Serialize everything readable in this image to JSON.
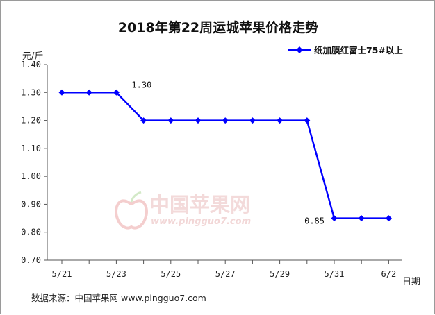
{
  "chart_data": {
    "type": "line",
    "title": "2018年第22周运城苹果价格走势",
    "ylabel": "元/斤",
    "xlabel": "日期",
    "ylim": [
      0.7,
      1.4
    ],
    "yticks": [
      "1.40",
      "1.30",
      "1.20",
      "1.10",
      "1.00",
      "0.90",
      "0.80",
      "0.70"
    ],
    "categories": [
      "5/21",
      "5/22",
      "5/23",
      "5/24",
      "5/25",
      "5/26",
      "5/27",
      "5/28",
      "5/29",
      "5/30",
      "5/31",
      "6/1",
      "6/2"
    ],
    "xtick_labels": [
      "5/21",
      "5/23",
      "5/25",
      "5/27",
      "5/29",
      "5/31",
      "6/2"
    ],
    "series": [
      {
        "name": "纸加膜红富士75#以上",
        "color": "#0000ff",
        "values": [
          1.3,
          1.3,
          1.3,
          1.2,
          1.2,
          1.2,
          1.2,
          1.2,
          1.2,
          1.2,
          0.85,
          0.85,
          0.85
        ]
      }
    ],
    "annotations": [
      {
        "text": "1.30",
        "category": "5/23"
      },
      {
        "text": "0.85",
        "category": "5/31"
      }
    ],
    "legend_position": "top-right",
    "grid": false
  },
  "watermark": {
    "name": "中国苹果网",
    "url": "www.pingguo7.com"
  },
  "source": "数据来源：中国苹果网 www.pingguo7.com"
}
